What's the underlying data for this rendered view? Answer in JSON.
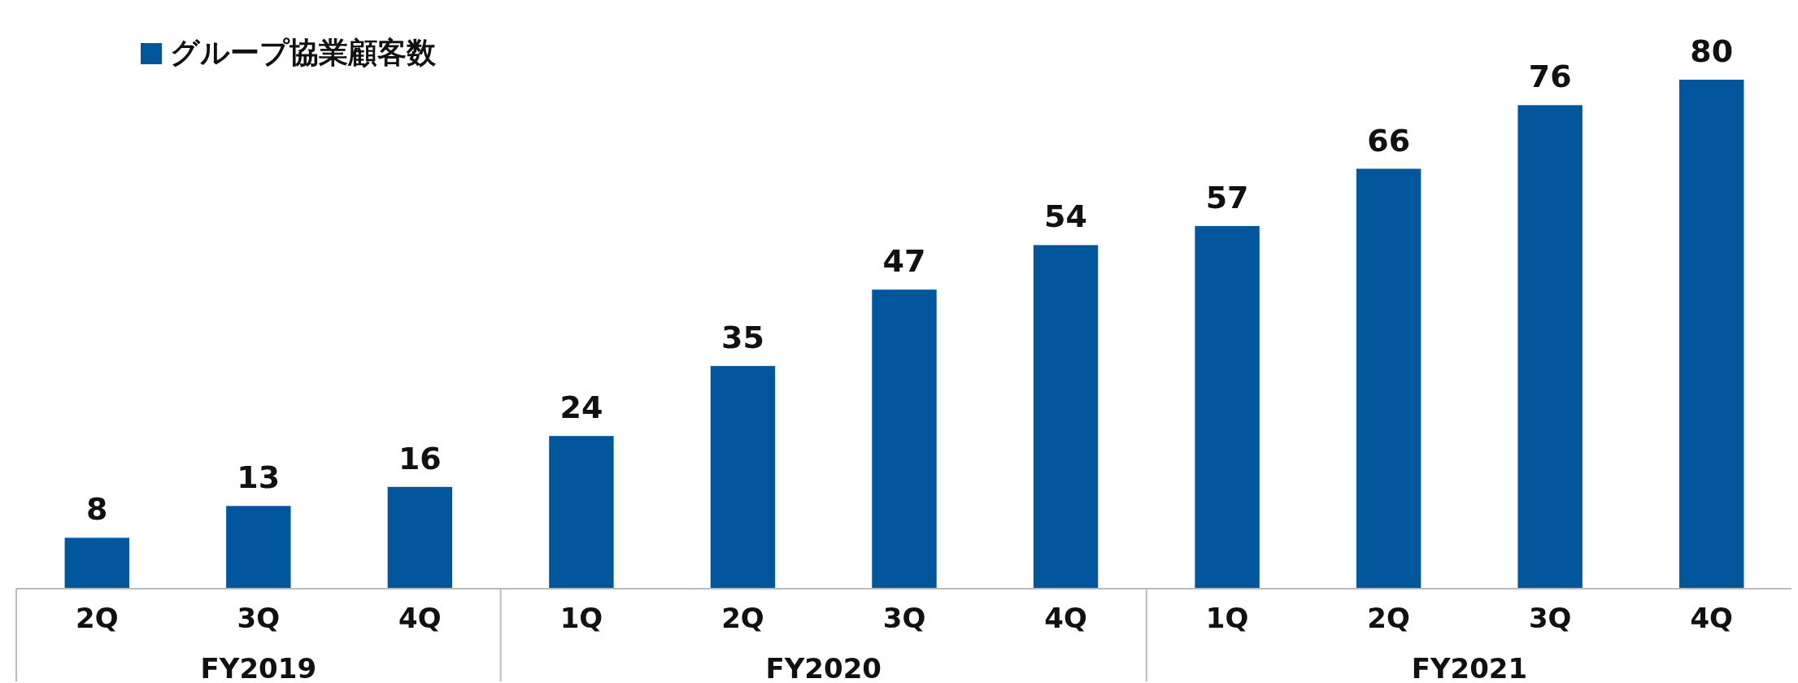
{
  "chart_data": {
    "type": "bar",
    "categories": [
      "2Q",
      "3Q",
      "4Q",
      "1Q",
      "2Q",
      "3Q",
      "4Q",
      "1Q",
      "2Q",
      "3Q",
      "4Q"
    ],
    "series": [
      {
        "name": "グループ協業顧客数",
        "color": "#02569b",
        "values": [
          8,
          13,
          16,
          24,
          35,
          47,
          54,
          57,
          66,
          76,
          80
        ]
      }
    ],
    "annotations": [
      "FY2019",
      "FY2020",
      "FY2021"
    ],
    "data_labels": true,
    "legend": "top left"
  }
}
